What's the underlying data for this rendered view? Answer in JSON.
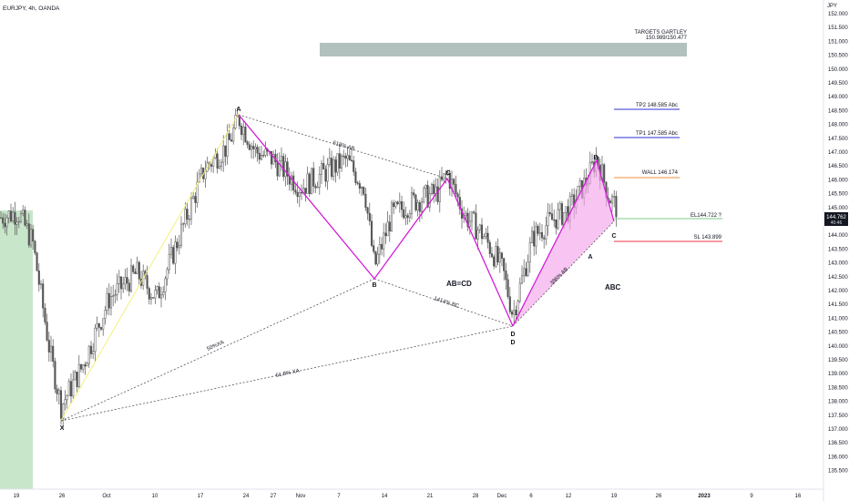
{
  "header": {
    "symbol_title": "EURJPY, 4h, OANDA"
  },
  "yaxis": {
    "currency": "JPY",
    "ticks": [
      "152.000",
      "151.500",
      "151.000",
      "150.500",
      "150.000",
      "149.500",
      "149.000",
      "148.500",
      "148.000",
      "147.500",
      "147.000",
      "146.500",
      "146.000",
      "145.500",
      "145.000",
      "144.500",
      "144.000",
      "143.500",
      "143.000",
      "142.500",
      "142.000",
      "141.500",
      "141.000",
      "140.500",
      "140.000",
      "139.500",
      "139.000",
      "138.500",
      "138.000",
      "137.500",
      "137.000",
      "136.500",
      "136.000",
      "135.500"
    ],
    "last_price": "144.762",
    "countdown": "40:46"
  },
  "xaxis": {
    "ticks": [
      "19",
      "26",
      "Oct",
      "10",
      "17",
      "24",
      "27",
      "Nov",
      "7",
      "14",
      "21",
      "28",
      "Dec",
      "6",
      "12",
      "19",
      "26",
      "2023",
      "9",
      "16"
    ]
  },
  "annotations": {
    "targets_title": "TARGETS GARTLEY",
    "targets_values": "150.989/150.477",
    "tp2": "TP2 148.585 Abc",
    "tp1": "TP1 147.585 Abc",
    "wall": "WALL 146.174",
    "entry": "EL144.722 ?",
    "stop": "SL 143.899",
    "abcd": "AB=CD",
    "abc": "ABC",
    "fib_ab": "618% AB",
    "fib_bc": "1414% BC",
    "fib_xa50": "50%XA",
    "fib_xa618": "61.8% XA",
    "fib_small": "386% AB"
  },
  "chart_data": {
    "type": "candlestick",
    "symbol": "EURJPY",
    "timeframe": "4h",
    "exchange": "OANDA",
    "ylim": [
      135.0,
      152.3
    ],
    "close_series": [
      {
        "x": "Sep 14",
        "y": 144.4
      },
      {
        "x": "Sep 17",
        "y": 144.6
      },
      {
        "x": "Sep 19",
        "y": 143.5
      },
      {
        "x": "Sep 22",
        "y": 139.5
      },
      {
        "x": "Sep 23",
        "y": 137.6
      },
      {
        "x": "Sep 28",
        "y": 139.0
      },
      {
        "x": "Oct 3",
        "y": 141.5
      },
      {
        "x": "Oct 7",
        "y": 142.4
      },
      {
        "x": "Oct 11",
        "y": 141.5
      },
      {
        "x": "Oct 14",
        "y": 144.0
      },
      {
        "x": "Oct 17",
        "y": 146.2
      },
      {
        "x": "Oct 20",
        "y": 147.0
      },
      {
        "x": "Oct 21",
        "y": 148.0
      },
      {
        "x": "Oct 24",
        "y": 146.8
      },
      {
        "x": "Oct 28",
        "y": 146.5
      },
      {
        "x": "Nov 3",
        "y": 145.5
      },
      {
        "x": "Nov 7",
        "y": 146.5
      },
      {
        "x": "Nov 10",
        "y": 145.5
      },
      {
        "x": "Nov 11",
        "y": 142.6
      },
      {
        "x": "Nov 14",
        "y": 144.5
      },
      {
        "x": "Nov 18",
        "y": 145.0
      },
      {
        "x": "Nov 22",
        "y": 145.3
      },
      {
        "x": "Nov 23",
        "y": 146.0
      },
      {
        "x": "Nov 26",
        "y": 144.5
      },
      {
        "x": "Nov 29",
        "y": 143.8
      },
      {
        "x": "Dec 1",
        "y": 142.5
      },
      {
        "x": "Dec 2",
        "y": 140.9
      },
      {
        "x": "Dec 6",
        "y": 143.7
      },
      {
        "x": "Dec 9",
        "y": 144.3
      },
      {
        "x": "Dec 12",
        "y": 144.7
      },
      {
        "x": "Dec 14",
        "y": 145.8
      },
      {
        "x": "Dec 15",
        "y": 146.6
      },
      {
        "x": "Dec 17",
        "y": 145.2
      },
      {
        "x": "Dec 19",
        "y": 144.76
      }
    ],
    "pattern_points": [
      {
        "label": "X",
        "x": "Sep 23",
        "y": 137.5
      },
      {
        "label": "A",
        "x": "Oct 21",
        "y": 148.0
      },
      {
        "label": "B",
        "x": "Nov 10",
        "y": 142.6
      },
      {
        "label": "C",
        "x": "Nov 23",
        "y": 146.1
      },
      {
        "label": "D",
        "x": "Dec 2",
        "y": 140.9
      },
      {
        "label": "B",
        "x": "Dec 15",
        "y": 146.8
      },
      {
        "label": "A",
        "x": "Dec 14",
        "y": 144.0
      },
      {
        "label": "C",
        "x": "Dec 18",
        "y": 144.6
      }
    ],
    "levels": [
      {
        "label": "TP2 148.585 Abc",
        "value": 148.585,
        "color": "#2e30d6"
      },
      {
        "label": "TP1 147.585 Abc",
        "value": 147.585,
        "color": "#2e30d6"
      },
      {
        "label": "WALL 146.174",
        "value": 146.174,
        "color": "#f08c3c"
      },
      {
        "label": "EL144.722 ?",
        "value": 144.722,
        "color": "#4caf50"
      },
      {
        "label": "SL 143.899",
        "value": 143.899,
        "color": "#f23645"
      }
    ],
    "target_zone": {
      "low": 150.477,
      "high": 150.989
    },
    "colors": {
      "candles": "#555555",
      "pattern_line": "#d21dd6",
      "pattern_fill": "#f5a6ec",
      "xa_line": "#f5f07a",
      "green_zone": "#c8e6c9",
      "target_zone": "#b2c1bd",
      "last_price_bg": "#131722"
    }
  }
}
